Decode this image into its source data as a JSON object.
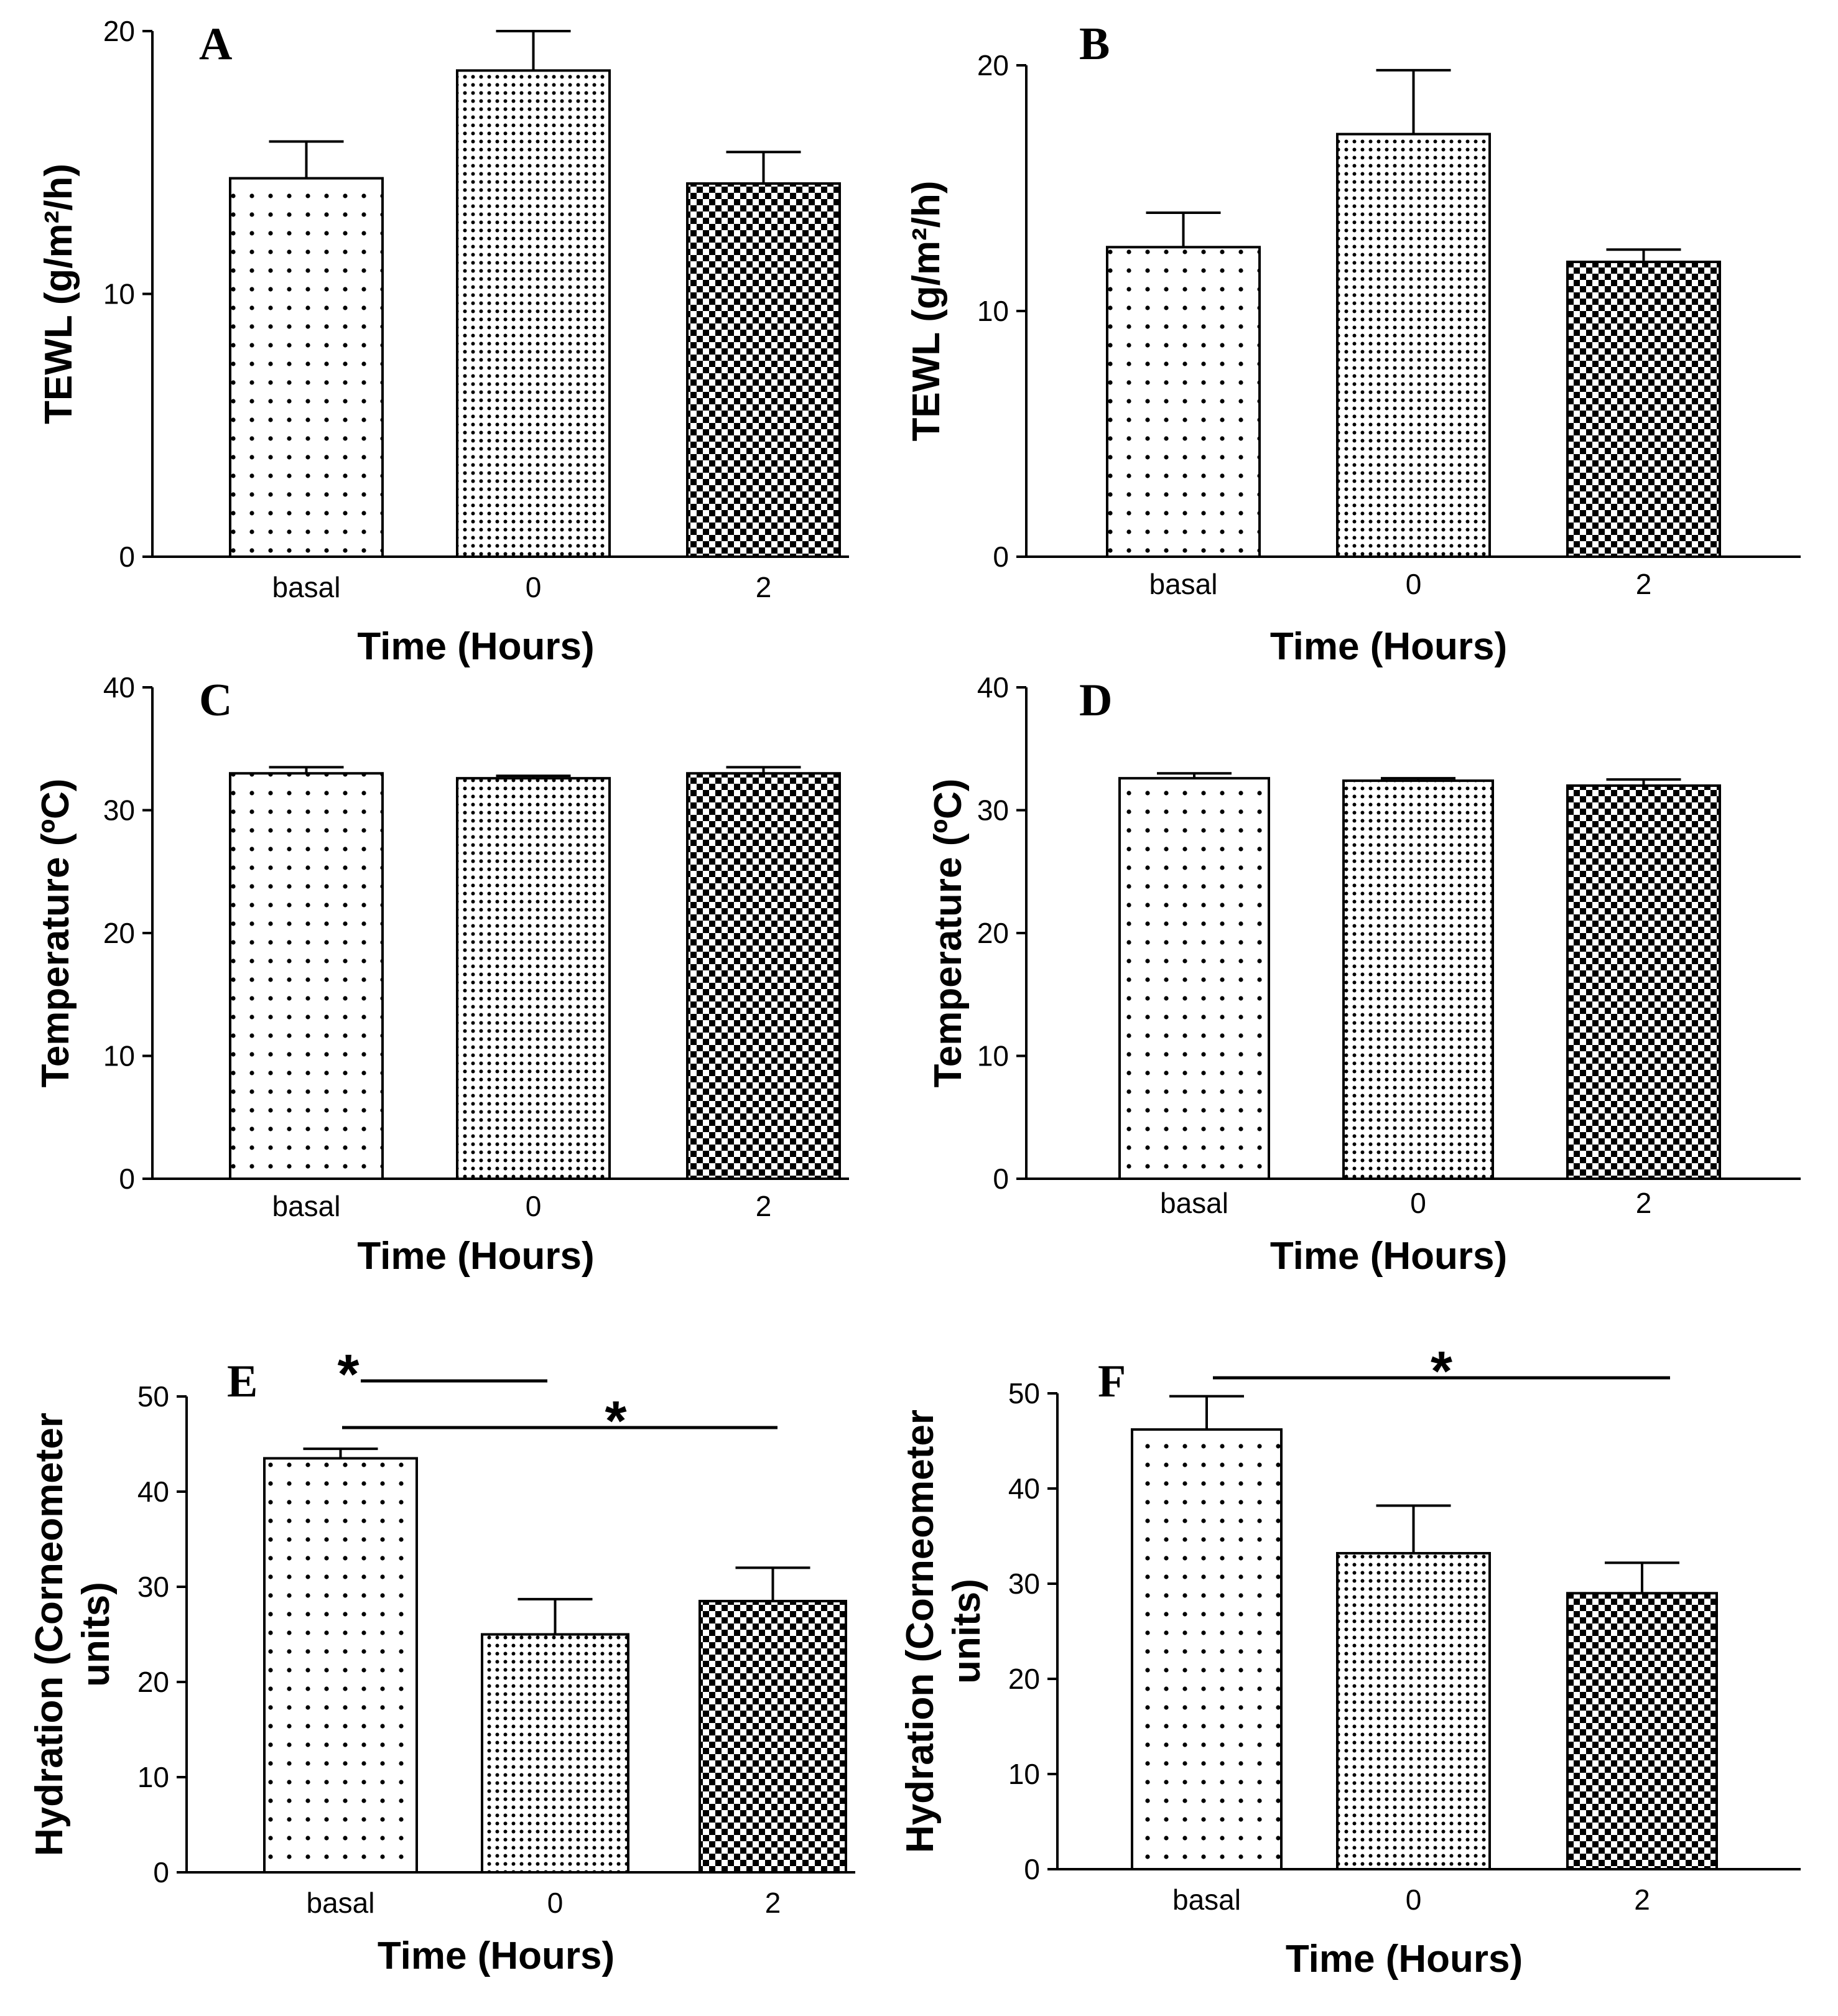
{
  "chart_data": [
    {
      "type": "bar",
      "panel": "A",
      "categories": [
        "basal",
        "0",
        "2"
      ],
      "values": [
        14.4,
        18.5,
        14.2
      ],
      "errors": [
        1.4,
        1.5,
        1.2
      ],
      "ylabel": "TEWL (g/m²/h)",
      "xlabel": "Time (Hours)",
      "ylim": [
        0,
        20
      ],
      "yticks": [
        "0",
        "10",
        "20"
      ],
      "significance": []
    },
    {
      "type": "bar",
      "panel": "B",
      "categories": [
        "basal",
        "0",
        "2"
      ],
      "values": [
        12.6,
        17.2,
        12.0
      ],
      "errors": [
        1.4,
        2.6,
        0.5
      ],
      "ylabel": "TEWL (g/m²/h)",
      "xlabel": "Time (Hours)",
      "ylim": [
        0,
        20
      ],
      "yticks": [
        "0",
        "10",
        "20"
      ],
      "significance": []
    },
    {
      "type": "bar",
      "panel": "C",
      "categories": [
        "basal",
        "0",
        "2"
      ],
      "values": [
        33.0,
        32.6,
        33.0
      ],
      "errors": [
        0.5,
        0.2,
        0.5
      ],
      "ylabel": "Temperature (ºC)",
      "xlabel": "Time (Hours)",
      "ylim": [
        0,
        40
      ],
      "yticks": [
        "0",
        "10",
        "20",
        "30",
        "40"
      ],
      "significance": []
    },
    {
      "type": "bar",
      "panel": "D",
      "categories": [
        "basal",
        "0",
        "2"
      ],
      "values": [
        32.6,
        32.4,
        32.0
      ],
      "errors": [
        0.4,
        0.2,
        0.5
      ],
      "ylabel": "Temperature (ºC)",
      "xlabel": "Time (Hours)",
      "ylim": [
        0,
        40
      ],
      "yticks": [
        "0",
        "10",
        "20",
        "30",
        "40"
      ],
      "significance": []
    },
    {
      "type": "bar",
      "panel": "E",
      "categories": [
        "basal",
        "0",
        "2"
      ],
      "values": [
        43.5,
        25.0,
        28.5
      ],
      "errors": [
        1.0,
        3.7,
        3.5
      ],
      "ylabel": "Hydration (Corneometer units)",
      "ylabel_lines": [
        "Hydration (Corneometer",
        "units)"
      ],
      "xlabel": "Time (Hours)",
      "ylim": [
        0,
        50
      ],
      "yticks": [
        "0",
        "10",
        "20",
        "30",
        "40",
        "50"
      ],
      "significance": [
        {
          "from": "basal",
          "to": "0",
          "label": "*"
        },
        {
          "from": "basal",
          "to": "2",
          "label": "*"
        }
      ]
    },
    {
      "type": "bar",
      "panel": "F",
      "categories": [
        "basal",
        "0",
        "2"
      ],
      "values": [
        46.2,
        33.2,
        29.0
      ],
      "errors": [
        3.5,
        5.0,
        3.2
      ],
      "ylabel": "Hydration (Corneometer units)",
      "ylabel_lines": [
        "Hydration (Corneometer",
        "units)"
      ],
      "xlabel": "Time (Hours)",
      "ylim": [
        0,
        50
      ],
      "yticks": [
        "0",
        "10",
        "20",
        "30",
        "40",
        "50"
      ],
      "significance": [
        {
          "from": "basal",
          "to": "2",
          "label": "*"
        }
      ]
    }
  ]
}
